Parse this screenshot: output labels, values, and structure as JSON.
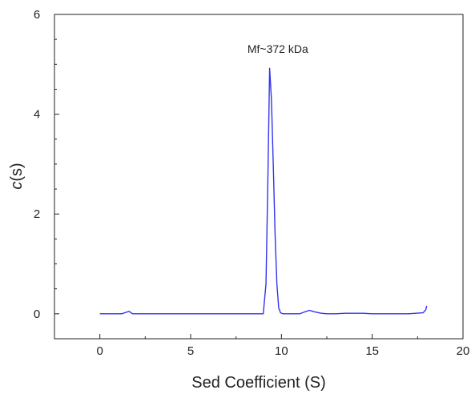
{
  "chart_data": {
    "type": "line",
    "title": "",
    "xlabel": "Sed Coefficient (S)",
    "ylabel_italic": "c",
    "ylabel_rest": "(s)",
    "xlim": [
      -2.5,
      20
    ],
    "ylim": [
      -0.5,
      6
    ],
    "xticks": [
      0,
      5,
      10,
      15,
      20
    ],
    "yticks": [
      0,
      2,
      4,
      6
    ],
    "grid": false,
    "line_color": "#3333ee",
    "annotation": {
      "text": "Mf~372 kDa",
      "x": 9.8,
      "y": 5.1
    },
    "series": [
      {
        "x": [
          0.0,
          1.2,
          1.45,
          1.6,
          1.8,
          2.2,
          5.0,
          8.5,
          9.0,
          9.15,
          9.25,
          9.35,
          9.45,
          9.55,
          9.65,
          9.75,
          9.85,
          9.95,
          10.1,
          11.0,
          11.3,
          11.55,
          11.8,
          12.2,
          12.5,
          13.0,
          13.5,
          14.0,
          14.5,
          15.0,
          17.0,
          17.8,
          17.95,
          18.0
        ],
        "y": [
          0.0,
          0.0,
          0.03,
          0.05,
          0.0,
          0.0,
          0.0,
          0.0,
          0.0,
          0.6,
          2.6,
          4.92,
          4.3,
          3.0,
          1.6,
          0.6,
          0.12,
          0.02,
          0.0,
          0.0,
          0.04,
          0.07,
          0.04,
          0.01,
          0.0,
          0.0,
          0.01,
          0.01,
          0.01,
          0.0,
          0.0,
          0.02,
          0.08,
          0.16
        ]
      }
    ]
  }
}
